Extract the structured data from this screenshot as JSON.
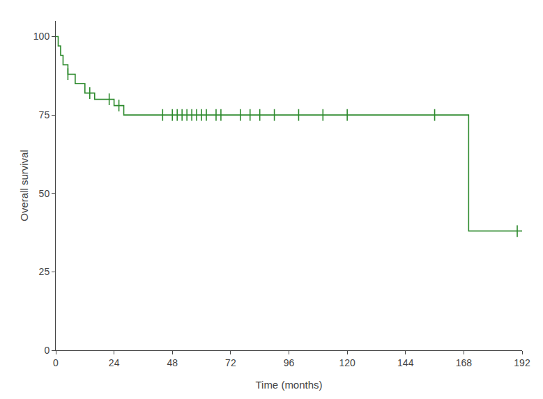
{
  "chart_data": {
    "type": "step",
    "xlabel": "Time (months)",
    "ylabel": "Overall survival",
    "xlim": [
      0,
      192
    ],
    "ylim": [
      0,
      105
    ],
    "xticks": [
      0,
      24,
      48,
      72,
      96,
      120,
      144,
      168,
      192
    ],
    "yticks": [
      0,
      25,
      50,
      75,
      100
    ],
    "grid": false,
    "series": [
      {
        "type": "step",
        "color": "#2d8a2d",
        "x": [
          0,
          1,
          2,
          3,
          5,
          6,
          8,
          10,
          12,
          14,
          16,
          18,
          20,
          22,
          24,
          26,
          28,
          38,
          44,
          168,
          170,
          192
        ],
        "values": [
          100,
          97,
          94,
          91,
          88,
          88,
          85,
          85,
          82,
          82,
          80,
          80,
          80,
          80,
          78,
          78,
          75,
          75,
          75,
          75,
          38,
          38
        ]
      },
      {
        "type": "scatter",
        "marker": "tick",
        "color": "#2d8a2d",
        "x": [
          5,
          14,
          22,
          26,
          44,
          48,
          50,
          52,
          54,
          56,
          58,
          60,
          62,
          66,
          68,
          76,
          80,
          84,
          90,
          100,
          110,
          120,
          156,
          190
        ],
        "values": [
          88,
          82,
          80,
          78,
          75,
          75,
          75,
          75,
          75,
          75,
          75,
          75,
          75,
          75,
          75,
          75,
          75,
          75,
          75,
          75,
          75,
          75,
          75,
          38
        ]
      }
    ]
  }
}
